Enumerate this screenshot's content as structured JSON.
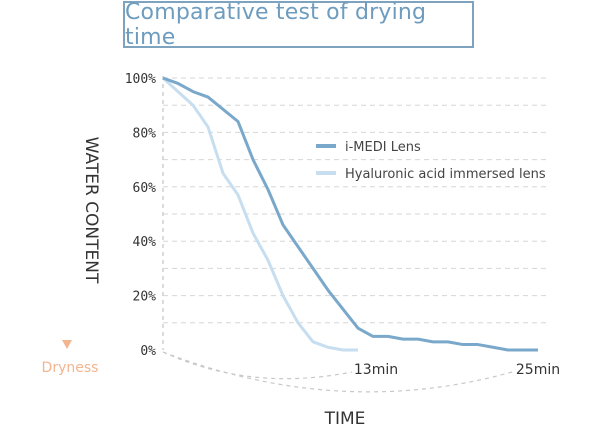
{
  "title": "Comparative test of drying time",
  "y_axis_title": "WATER CONTENT",
  "dryness_label": "Dryness",
  "x_axis_title": "TIME",
  "time_markers": [
    "13min",
    "25min"
  ],
  "colors": {
    "series1": "#7aa8cb",
    "series2": "#c6deef",
    "title": "#6d9cbf",
    "dryness": "#f2b58f"
  },
  "chart_data": {
    "type": "line",
    "title": "Comparative test of drying time",
    "xlabel": "TIME",
    "ylabel": "WATER CONTENT",
    "yticks": [
      "100%",
      "80%",
      "60%",
      "40%",
      "20%",
      "0%"
    ],
    "ylim": [
      0,
      100
    ],
    "xlim": [
      0,
      25
    ],
    "x_unit": "min",
    "grid": true,
    "legend": "top-right",
    "series": [
      {
        "name": "i-MEDI Lens",
        "points": [
          [
            0,
            100
          ],
          [
            1,
            98
          ],
          [
            2,
            95
          ],
          [
            3,
            93
          ],
          [
            5,
            84
          ],
          [
            6,
            70
          ],
          [
            7,
            59
          ],
          [
            8,
            46
          ],
          [
            9,
            38
          ],
          [
            10,
            30
          ],
          [
            11,
            22
          ],
          [
            12,
            15
          ],
          [
            13,
            8
          ],
          [
            14,
            5
          ],
          [
            15,
            5
          ],
          [
            16,
            4
          ],
          [
            17,
            4
          ],
          [
            18,
            3
          ],
          [
            19,
            3
          ],
          [
            20,
            2
          ],
          [
            21,
            2
          ],
          [
            22,
            1
          ],
          [
            23,
            0
          ],
          [
            25,
            0
          ]
        ]
      },
      {
        "name": "Hyaluronic acid immersed lens",
        "points": [
          [
            0,
            100
          ],
          [
            1,
            95
          ],
          [
            2,
            90
          ],
          [
            3,
            82
          ],
          [
            4,
            65
          ],
          [
            5,
            57
          ],
          [
            6,
            43
          ],
          [
            7,
            33
          ],
          [
            8,
            20
          ],
          [
            9,
            10
          ],
          [
            10,
            3
          ],
          [
            11,
            1
          ],
          [
            12,
            0
          ],
          [
            13,
            0
          ]
        ]
      }
    ]
  }
}
